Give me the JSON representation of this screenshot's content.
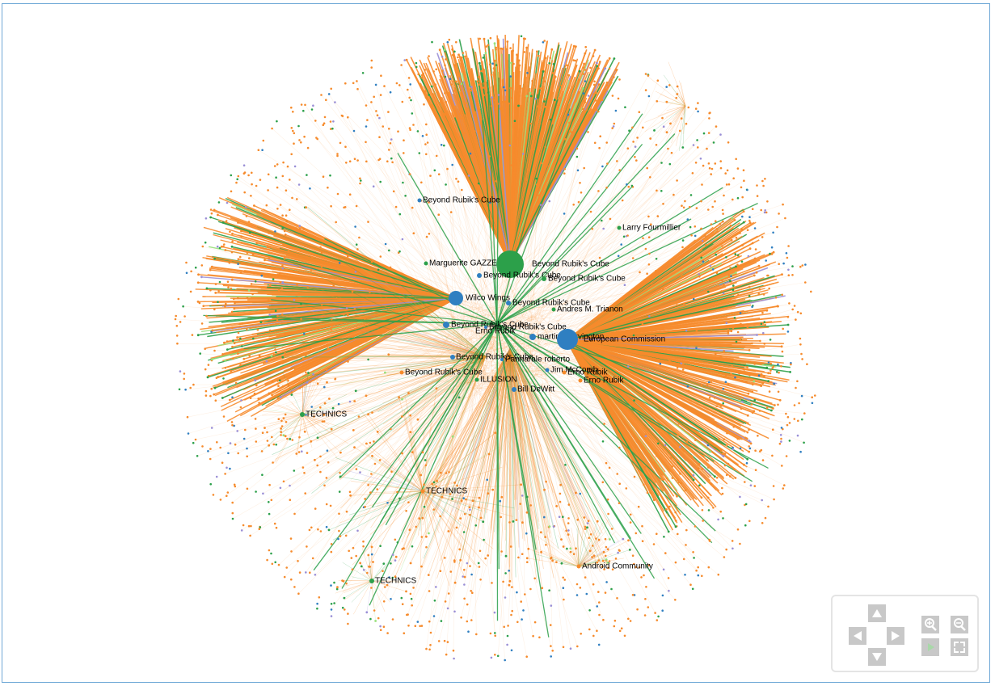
{
  "nodes": [
    {
      "label": "Beyond Rubik's Cube"
    },
    {
      "label": "Larry Fourmillier"
    },
    {
      "label": "Marguerite GAZZE"
    },
    {
      "label": "Beyond Rubik's Cube"
    },
    {
      "label": "Beyond Rubik's Cube"
    },
    {
      "label": "Beyond Rubik's Cube"
    },
    {
      "label": "Wilco Wings"
    },
    {
      "label": "Beyond Rubik's Cube"
    },
    {
      "label": "Andres M. Trianon"
    },
    {
      "label": "Beyond Rubik's Cube"
    },
    {
      "label": "Erno Rubik"
    },
    {
      "label": "Beyond Rubik's Cube"
    },
    {
      "label": "martin shervington"
    },
    {
      "label": "European Commission"
    },
    {
      "label": "Beyond Rubik's Cube"
    },
    {
      "label": "Pannarale roberto"
    },
    {
      "label": "Jim McComb"
    },
    {
      "label": "Erno Rubik"
    },
    {
      "label": "Beyond Rubik's Cube"
    },
    {
      "label": "ILLUSION"
    },
    {
      "label": "Erno Rubik"
    },
    {
      "label": "Bill DeWitt"
    },
    {
      "label": "TECHNICS"
    },
    {
      "label": "TECHNICS"
    },
    {
      "label": "TECHNICS"
    },
    {
      "label": "Android Community"
    }
  ]
}
